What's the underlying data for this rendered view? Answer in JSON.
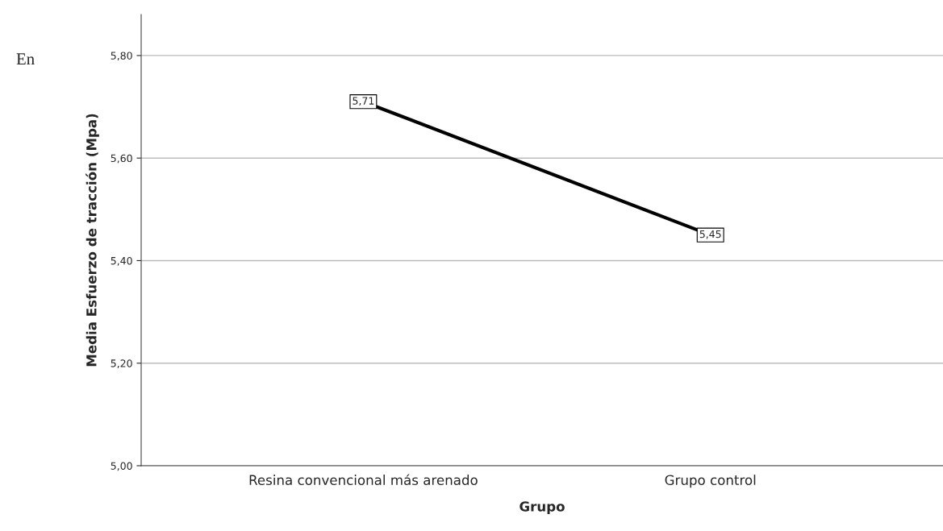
{
  "chart_data": {
    "type": "line",
    "xlabel": "Grupo",
    "ylabel": "Media Esfuerzo de tracción (Mpa)",
    "categories": [
      "Resina convencional más arenado",
      "Grupo control"
    ],
    "series": [
      {
        "color": "#000000",
        "values": [
          5.71,
          5.45
        ],
        "value_labels": [
          "5,71",
          "5,45"
        ]
      }
    ],
    "ylim": [
      5.0,
      5.88
    ],
    "yticks": [
      {
        "value": 5.0,
        "label": "5,00"
      },
      {
        "value": 5.2,
        "label": "5,20"
      },
      {
        "value": 5.4,
        "label": "5,40"
      },
      {
        "value": 5.6,
        "label": "5,60"
      },
      {
        "value": 5.8,
        "label": "5,80"
      }
    ],
    "grid": "y",
    "marker": "square",
    "line_style": "solid",
    "legend": false,
    "annotations": [
      "En"
    ]
  }
}
